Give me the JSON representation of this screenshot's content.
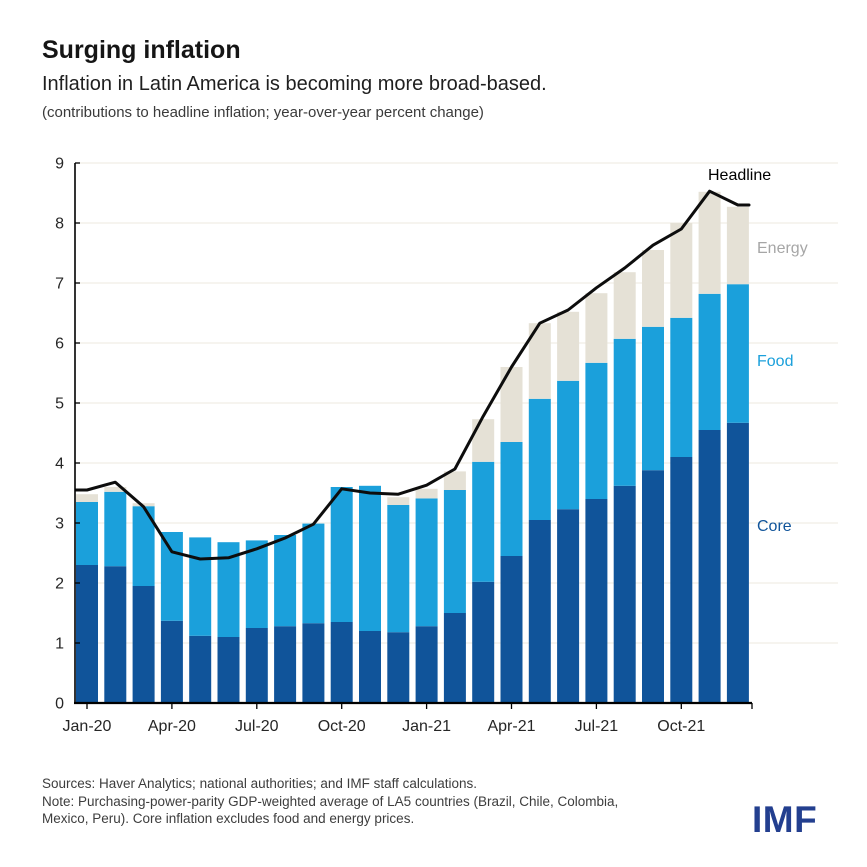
{
  "header": {
    "title": "Surging inflation",
    "subtitle": "Inflation in Latin America is becoming more broad-based.",
    "unit_note": "(contributions to headline inflation; year-over-year percent change)"
  },
  "chart_data": {
    "type": "bar",
    "subtype": "stacked-bars-with-line-overlay",
    "title": "Surging inflation",
    "subtitle": "Inflation in Latin America is becoming more broad-based.",
    "unit_label": "(contributions to headline inflation; year-over-year percent change)",
    "categories": [
      "Jan-20",
      "Feb-20",
      "Mar-20",
      "Apr-20",
      "May-20",
      "Jun-20",
      "Jul-20",
      "Aug-20",
      "Sep-20",
      "Oct-20",
      "Nov-20",
      "Dec-20",
      "Jan-21",
      "Feb-21",
      "Mar-21",
      "Apr-21",
      "May-21",
      "Jun-21",
      "Jul-21",
      "Aug-21",
      "Sep-21",
      "Oct-21",
      "Nov-21",
      "Dec-21"
    ],
    "series": [
      {
        "name": "Core",
        "type": "bar",
        "color": "#10549a",
        "values": [
          2.3,
          2.28,
          1.95,
          1.37,
          1.12,
          1.1,
          1.25,
          1.28,
          1.33,
          1.35,
          1.2,
          1.18,
          1.28,
          1.5,
          2.02,
          2.45,
          3.05,
          3.23,
          3.4,
          3.62,
          3.88,
          4.1,
          4.55,
          4.67
        ]
      },
      {
        "name": "Food",
        "type": "bar",
        "color": "#1ba0db",
        "values": [
          1.05,
          1.24,
          1.33,
          1.48,
          1.64,
          1.58,
          1.46,
          1.52,
          1.66,
          2.25,
          2.42,
          2.12,
          2.13,
          2.05,
          2.0,
          1.9,
          2.02,
          2.14,
          2.27,
          2.45,
          2.39,
          2.32,
          2.27,
          2.31
        ]
      },
      {
        "name": "Energy",
        "type": "bar",
        "color": "#e5e1d6",
        "values": [
          0.13,
          0.08,
          0.05,
          0,
          0,
          0,
          0,
          0,
          0,
          0,
          0,
          0.13,
          0.16,
          0.31,
          0.71,
          1.25,
          1.26,
          1.15,
          1.16,
          1.11,
          1.28,
          1.58,
          1.7,
          1.29
        ]
      },
      {
        "name": "Headline",
        "type": "line",
        "color": "#0d0d0d",
        "values": [
          3.55,
          3.68,
          3.27,
          2.52,
          2.4,
          2.42,
          2.57,
          2.75,
          2.98,
          3.57,
          3.5,
          3.48,
          3.63,
          3.9,
          4.78,
          5.6,
          6.33,
          6.55,
          6.92,
          7.25,
          7.63,
          7.9,
          8.53,
          8.3
        ]
      }
    ],
    "ylim": [
      0,
      9
    ],
    "y_ticks": [
      0,
      1,
      2,
      3,
      4,
      5,
      6,
      7,
      8,
      9
    ],
    "x_tick_labels": [
      "Jan-20",
      "Apr-20",
      "Jul-20",
      "Oct-20",
      "Jan-21",
      "Apr-21",
      "Jul-21",
      "Oct-21"
    ],
    "x_tick_every": 3,
    "grid": "horizontal-light",
    "legend_position": "inline-labels-right"
  },
  "annotations": {
    "headline": "Headline",
    "energy": "Energy",
    "food": "Food",
    "core": "Core"
  },
  "colors": {
    "core": "#10549a",
    "food": "#1ba0db",
    "energy": "#e5e1d6",
    "headline_line": "#0d0d0d",
    "gridline": "#f0ede5",
    "axis": "#000000",
    "energy_label": "#a6a6a6",
    "food_label": "#1ba0db",
    "core_label": "#10549a",
    "headline_label": "#000000",
    "imf_logo": "#233f8f"
  },
  "footer": {
    "lines": [
      "Sources: Haver Analytics; national authorities; and IMF staff calculations.",
      "Note: Purchasing-power-parity GDP-weighted average of LA5 countries (Brazil, Chile, Colombia,",
      "Mexico, Peru). Core inflation excludes food and energy prices."
    ],
    "logo": "IMF"
  }
}
